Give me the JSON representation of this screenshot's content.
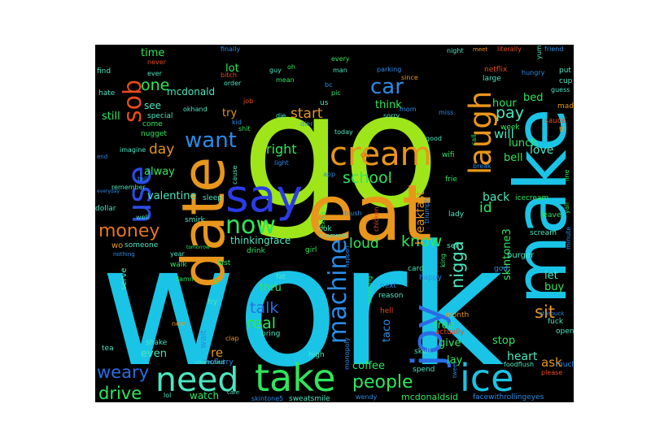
{
  "words": [
    {
      "text": "work",
      "color": "#1ac4e6"
    },
    {
      "text": "go",
      "color": "#9ee61a"
    },
    {
      "text": "eat",
      "color": "#e8961c"
    },
    {
      "text": "make",
      "color": "#1ac4e6"
    },
    {
      "text": "date",
      "color": "#e8961c"
    },
    {
      "text": "say",
      "color": "#2a3ce6"
    },
    {
      "text": "take",
      "color": "#2ee65c"
    },
    {
      "text": "need",
      "color": "#4be6c0"
    },
    {
      "text": "ice",
      "color": "#1ac4e6"
    },
    {
      "text": "joy",
      "color": "#2a6ce6"
    },
    {
      "text": "cream",
      "color": "#e8961c"
    },
    {
      "text": "use",
      "color": "#2a4ce6"
    },
    {
      "text": "laugh",
      "color": "#e8961c"
    },
    {
      "text": "sob",
      "color": "#e84a1c"
    },
    {
      "text": "machine",
      "color": "#2a8ce6"
    },
    {
      "text": "now",
      "color": "#2ee65c"
    },
    {
      "text": "want",
      "color": "#2a8ce6"
    },
    {
      "text": "people",
      "color": "#2ee65c"
    },
    {
      "text": "car",
      "color": "#2a8ce6"
    },
    {
      "text": "money",
      "color": "#e8761c"
    },
    {
      "text": "drive",
      "color": "#2ee65c"
    },
    {
      "text": "talk",
      "color": "#2a6ce6"
    },
    {
      "text": "weary",
      "color": "#2a6ce6"
    },
    {
      "text": "real",
      "color": "#2ee65c"
    },
    {
      "text": "know",
      "color": "#2ee65c"
    },
    {
      "text": "loud",
      "color": "#2ee65c"
    },
    {
      "text": "school",
      "color": "#2ee65c"
    },
    {
      "text": "nigga",
      "color": "#4be6c0"
    },
    {
      "text": "sit",
      "color": "#e8961c"
    },
    {
      "text": "pay",
      "color": "#4be6c0"
    },
    {
      "text": "one",
      "color": "#2ee65c"
    },
    {
      "text": "start",
      "color": "#e8961c"
    },
    {
      "text": "right",
      "color": "#2ee65c"
    },
    {
      "text": "day",
      "color": "#e8961c"
    },
    {
      "text": "id",
      "color": "#2ee65c"
    },
    {
      "text": "ask",
      "color": "#e8961c"
    },
    {
      "text": "heart",
      "color": "#4be6c0"
    },
    {
      "text": "breakfast",
      "color": "#e8961c"
    },
    {
      "text": "skintone3",
      "color": "#2ee65c"
    },
    {
      "text": "hour",
      "color": "#2ee65c"
    },
    {
      "text": "will",
      "color": "#4be6c0"
    },
    {
      "text": "love",
      "color": "#4be6c0"
    },
    {
      "text": "lunch",
      "color": "#2ee65c"
    },
    {
      "text": "bell",
      "color": "#2ee65c"
    },
    {
      "text": "back",
      "color": "#4be6c0"
    },
    {
      "text": "let",
      "color": "#4be6c0"
    },
    {
      "text": "buy",
      "color": "#2ee65c"
    },
    {
      "text": "think",
      "color": "#2ee65c"
    },
    {
      "text": "lay",
      "color": "#2ee65c"
    },
    {
      "text": "give",
      "color": "#2ee65c"
    },
    {
      "text": "free",
      "color": "#2ee65c"
    },
    {
      "text": "stop",
      "color": "#2ee65c"
    },
    {
      "text": "taco",
      "color": "#2a8ce6"
    },
    {
      "text": "coffee",
      "color": "#2ee65c"
    },
    {
      "text": "thru",
      "color": "#2ee65c"
    },
    {
      "text": "even",
      "color": "#4be6c0"
    },
    {
      "text": "watch",
      "color": "#2ee65c"
    },
    {
      "text": "re",
      "color": "#e8961c"
    },
    {
      "text": "wait",
      "color": "#2a8ce6"
    },
    {
      "text": "valentine",
      "color": "#4be6c0"
    },
    {
      "text": "thinkingface",
      "color": "#4be6c0"
    },
    {
      "text": "alway",
      "color": "#2ee65c"
    },
    {
      "text": "see",
      "color": "#4be6c0"
    },
    {
      "text": "still",
      "color": "#2ee65c"
    },
    {
      "text": "time",
      "color": "#2ee65c"
    },
    {
      "text": "lot",
      "color": "#2ee65c"
    },
    {
      "text": "try",
      "color": "#e8961c"
    },
    {
      "text": "mcdonald",
      "color": "#4be6c0"
    },
    {
      "text": "bed",
      "color": "#2ee65c"
    },
    {
      "text": "people",
      "color": "#2ee65c"
    },
    {
      "text": "mcdonaldsid",
      "color": "#2ee65c"
    },
    {
      "text": "facewithrollingeyes",
      "color": "#2a8ce6"
    },
    {
      "text": "skintone5",
      "color": "#2a8ce6"
    },
    {
      "text": "sweatsmile",
      "color": "#4be6c0"
    },
    {
      "text": "wendy",
      "color": "#2a8ce6"
    },
    {
      "text": "spend",
      "color": "#4be6c0"
    },
    {
      "text": "skull",
      "color": "#4be6c0"
    },
    {
      "text": "high",
      "color": "#4be6c0"
    },
    {
      "text": "monopoly",
      "color": "#2a8ce6"
    },
    {
      "text": "mcflurry",
      "color": "#2a8ce6"
    },
    {
      "text": "unamused",
      "color": "#4be6c0"
    },
    {
      "text": "shake",
      "color": "#4be6c0"
    },
    {
      "text": "tea",
      "color": "#4be6c0"
    },
    {
      "text": "new",
      "color": "#e8961c"
    },
    {
      "text": "clap",
      "color": "#e8961c"
    },
    {
      "text": "bring",
      "color": "#4be6c0"
    },
    {
      "text": "fat",
      "color": "#4be6c0"
    },
    {
      "text": "fry",
      "color": "#4be6c0"
    },
    {
      "text": "ill",
      "color": "#2ee65c"
    },
    {
      "text": "last",
      "color": "#2ee65c"
    },
    {
      "text": "drink",
      "color": "#2ee65c"
    },
    {
      "text": "girl",
      "color": "#2ee65c"
    },
    {
      "text": "look",
      "color": "#4be6c0"
    },
    {
      "text": "extra",
      "color": "#2ee65c"
    },
    {
      "text": "blush",
      "color": "#2a8ce6"
    },
    {
      "text": "chicken",
      "color": "#e84a1c"
    },
    {
      "text": "shamrock",
      "color": "#4be6c0"
    },
    {
      "text": "triumph",
      "color": "#2a8ce6"
    },
    {
      "text": "frie",
      "color": "#2ee65c"
    },
    {
      "text": "lady",
      "color": "#4be6c0"
    },
    {
      "text": "sell",
      "color": "#4be6c0"
    },
    {
      "text": "king",
      "color": "#2ee65c"
    },
    {
      "text": "card",
      "color": "#4be6c0"
    },
    {
      "text": "happy",
      "color": "#2a8ce6"
    },
    {
      "text": "next",
      "color": "#2a8ce6"
    },
    {
      "text": "reason",
      "color": "#4be6c0"
    },
    {
      "text": "hell",
      "color": "#e84a1c"
    },
    {
      "text": "month",
      "color": "#e8961c"
    },
    {
      "text": "actually",
      "color": "#e84a1c"
    },
    {
      "text": "tweet",
      "color": "#2a8ce6"
    },
    {
      "text": "foodflush",
      "color": "#4be6c0"
    },
    {
      "text": "please",
      "color": "#e84a1c"
    },
    {
      "text": "much",
      "color": "#2a8ce6"
    },
    {
      "text": "open",
      "color": "#4be6c0"
    },
    {
      "text": "fuck",
      "color": "#4be6c0"
    },
    {
      "text": "starbuck",
      "color": "#2a8ce6"
    },
    {
      "text": "scream",
      "color": "#4be6c0"
    },
    {
      "text": "burger",
      "color": "#4be6c0"
    },
    {
      "text": "leave",
      "color": "#2ee65c"
    },
    {
      "text": "icecream",
      "color": "#2ee65c"
    },
    {
      "text": "yall",
      "color": "#2ee65c"
    },
    {
      "text": "minute",
      "color": "#2a8ce6"
    },
    {
      "text": "line",
      "color": "#2ee65c"
    },
    {
      "text": "god",
      "color": "#2a8ce6"
    },
    {
      "text": "sauce",
      "color": "#e84a1c"
    },
    {
      "text": "tf",
      "color": "#e8961c"
    },
    {
      "text": "mad",
      "color": "#e8961c"
    },
    {
      "text": "guess",
      "color": "#4be6c0"
    },
    {
      "text": "cup",
      "color": "#4be6c0"
    },
    {
      "text": "put",
      "color": "#4be6c0"
    },
    {
      "text": "friend",
      "color": "#2a8ce6"
    },
    {
      "text": "yum",
      "color": "#4be6c0"
    },
    {
      "text": "hungry",
      "color": "#2a8ce6"
    },
    {
      "text": "week",
      "color": "#2ee65c"
    },
    {
      "text": "large",
      "color": "#4be6c0"
    },
    {
      "text": "netflix",
      "color": "#e84a1c"
    },
    {
      "text": "literally",
      "color": "#e84a1c"
    },
    {
      "text": "meet",
      "color": "#e8961c"
    },
    {
      "text": "night",
      "color": "#4be6c0"
    },
    {
      "text": "since",
      "color": "#e8961c"
    },
    {
      "text": "parking",
      "color": "#2a8ce6"
    },
    {
      "text": "mom",
      "color": "#2a8ce6"
    },
    {
      "text": "sorry",
      "color": "#4be6c0"
    },
    {
      "text": "miss",
      "color": "#2a8ce6"
    },
    {
      "text": "call",
      "color": "#2ee65c"
    },
    {
      "text": "good",
      "color": "#4be6c0"
    },
    {
      "text": "break",
      "color": "#2a8ce6"
    },
    {
      "text": "wifi",
      "color": "#2ee65c"
    },
    {
      "text": "app",
      "color": "#2a8ce6"
    },
    {
      "text": "cry",
      "color": "#e84a1c"
    },
    {
      "text": "today",
      "color": "#4be6c0"
    },
    {
      "text": "dier",
      "color": "#2a8ce6"
    },
    {
      "text": "pic",
      "color": "#2ee65c"
    },
    {
      "text": "bc",
      "color": "#2a8ce6"
    },
    {
      "text": "us",
      "color": "#4be6c0"
    },
    {
      "text": "man",
      "color": "#4be6c0"
    },
    {
      "text": "every",
      "color": "#2ee65c"
    },
    {
      "text": "oh",
      "color": "#2ee65c"
    },
    {
      "text": "guy",
      "color": "#4be6c0"
    },
    {
      "text": "mean",
      "color": "#2ee65c"
    },
    {
      "text": "die",
      "color": "#4be6c0"
    },
    {
      "text": "light",
      "color": "#2a8ce6"
    },
    {
      "text": "job",
      "color": "#e84a1c"
    },
    {
      "text": "kid",
      "color": "#2a8ce6"
    },
    {
      "text": "shit",
      "color": "#2ee65c"
    },
    {
      "text": "okhand",
      "color": "#4be6c0"
    },
    {
      "text": "order",
      "color": "#4be6c0"
    },
    {
      "text": "bitch",
      "color": "#e84a1c"
    },
    {
      "text": "finally",
      "color": "#2a8ce6"
    },
    {
      "text": "never",
      "color": "#e84a1c"
    },
    {
      "text": "ever",
      "color": "#4be6c0"
    },
    {
      "text": "find",
      "color": "#4be6c0"
    },
    {
      "text": "hate",
      "color": "#4be6c0"
    },
    {
      "text": "special",
      "color": "#4be6c0"
    },
    {
      "text": "come",
      "color": "#2ee65c"
    },
    {
      "text": "nugget",
      "color": "#2ee65c"
    },
    {
      "text": "imagine",
      "color": "#4be6c0"
    },
    {
      "text": "end",
      "color": "#2a8ce6"
    },
    {
      "text": "tell",
      "color": "#2a8ce6"
    },
    {
      "text": "remember",
      "color": "#4be6c0"
    },
    {
      "text": "everyday",
      "color": "#2a8ce6"
    },
    {
      "text": "dollar",
      "color": "#4be6c0"
    },
    {
      "text": "well",
      "color": "#4be6c0"
    },
    {
      "text": "sleep",
      "color": "#4be6c0"
    },
    {
      "text": "smirk",
      "color": "#4be6c0"
    },
    {
      "text": "cause",
      "color": "#4be6c0"
    },
    {
      "text": "tomorrow",
      "color": "#2ee65c"
    },
    {
      "text": "wo",
      "color": "#e8961c"
    },
    {
      "text": "someone",
      "color": "#4be6c0"
    },
    {
      "text": "nothing",
      "color": "#2a8ce6"
    },
    {
      "text": "year",
      "color": "#4be6c0"
    },
    {
      "text": "walk",
      "color": "#2ee65c"
    },
    {
      "text": "serve",
      "color": "#4be6c0"
    },
    {
      "text": "damn",
      "color": "#2ee65c"
    },
    {
      "text": "lol",
      "color": "#4be6c0"
    },
    {
      "text": "care",
      "color": "#4be6c0"
    },
    {
      "text": "happen",
      "color": "#2a8ce6"
    },
    {
      "text": "morning",
      "color": "#2ee65c"
    }
  ]
}
